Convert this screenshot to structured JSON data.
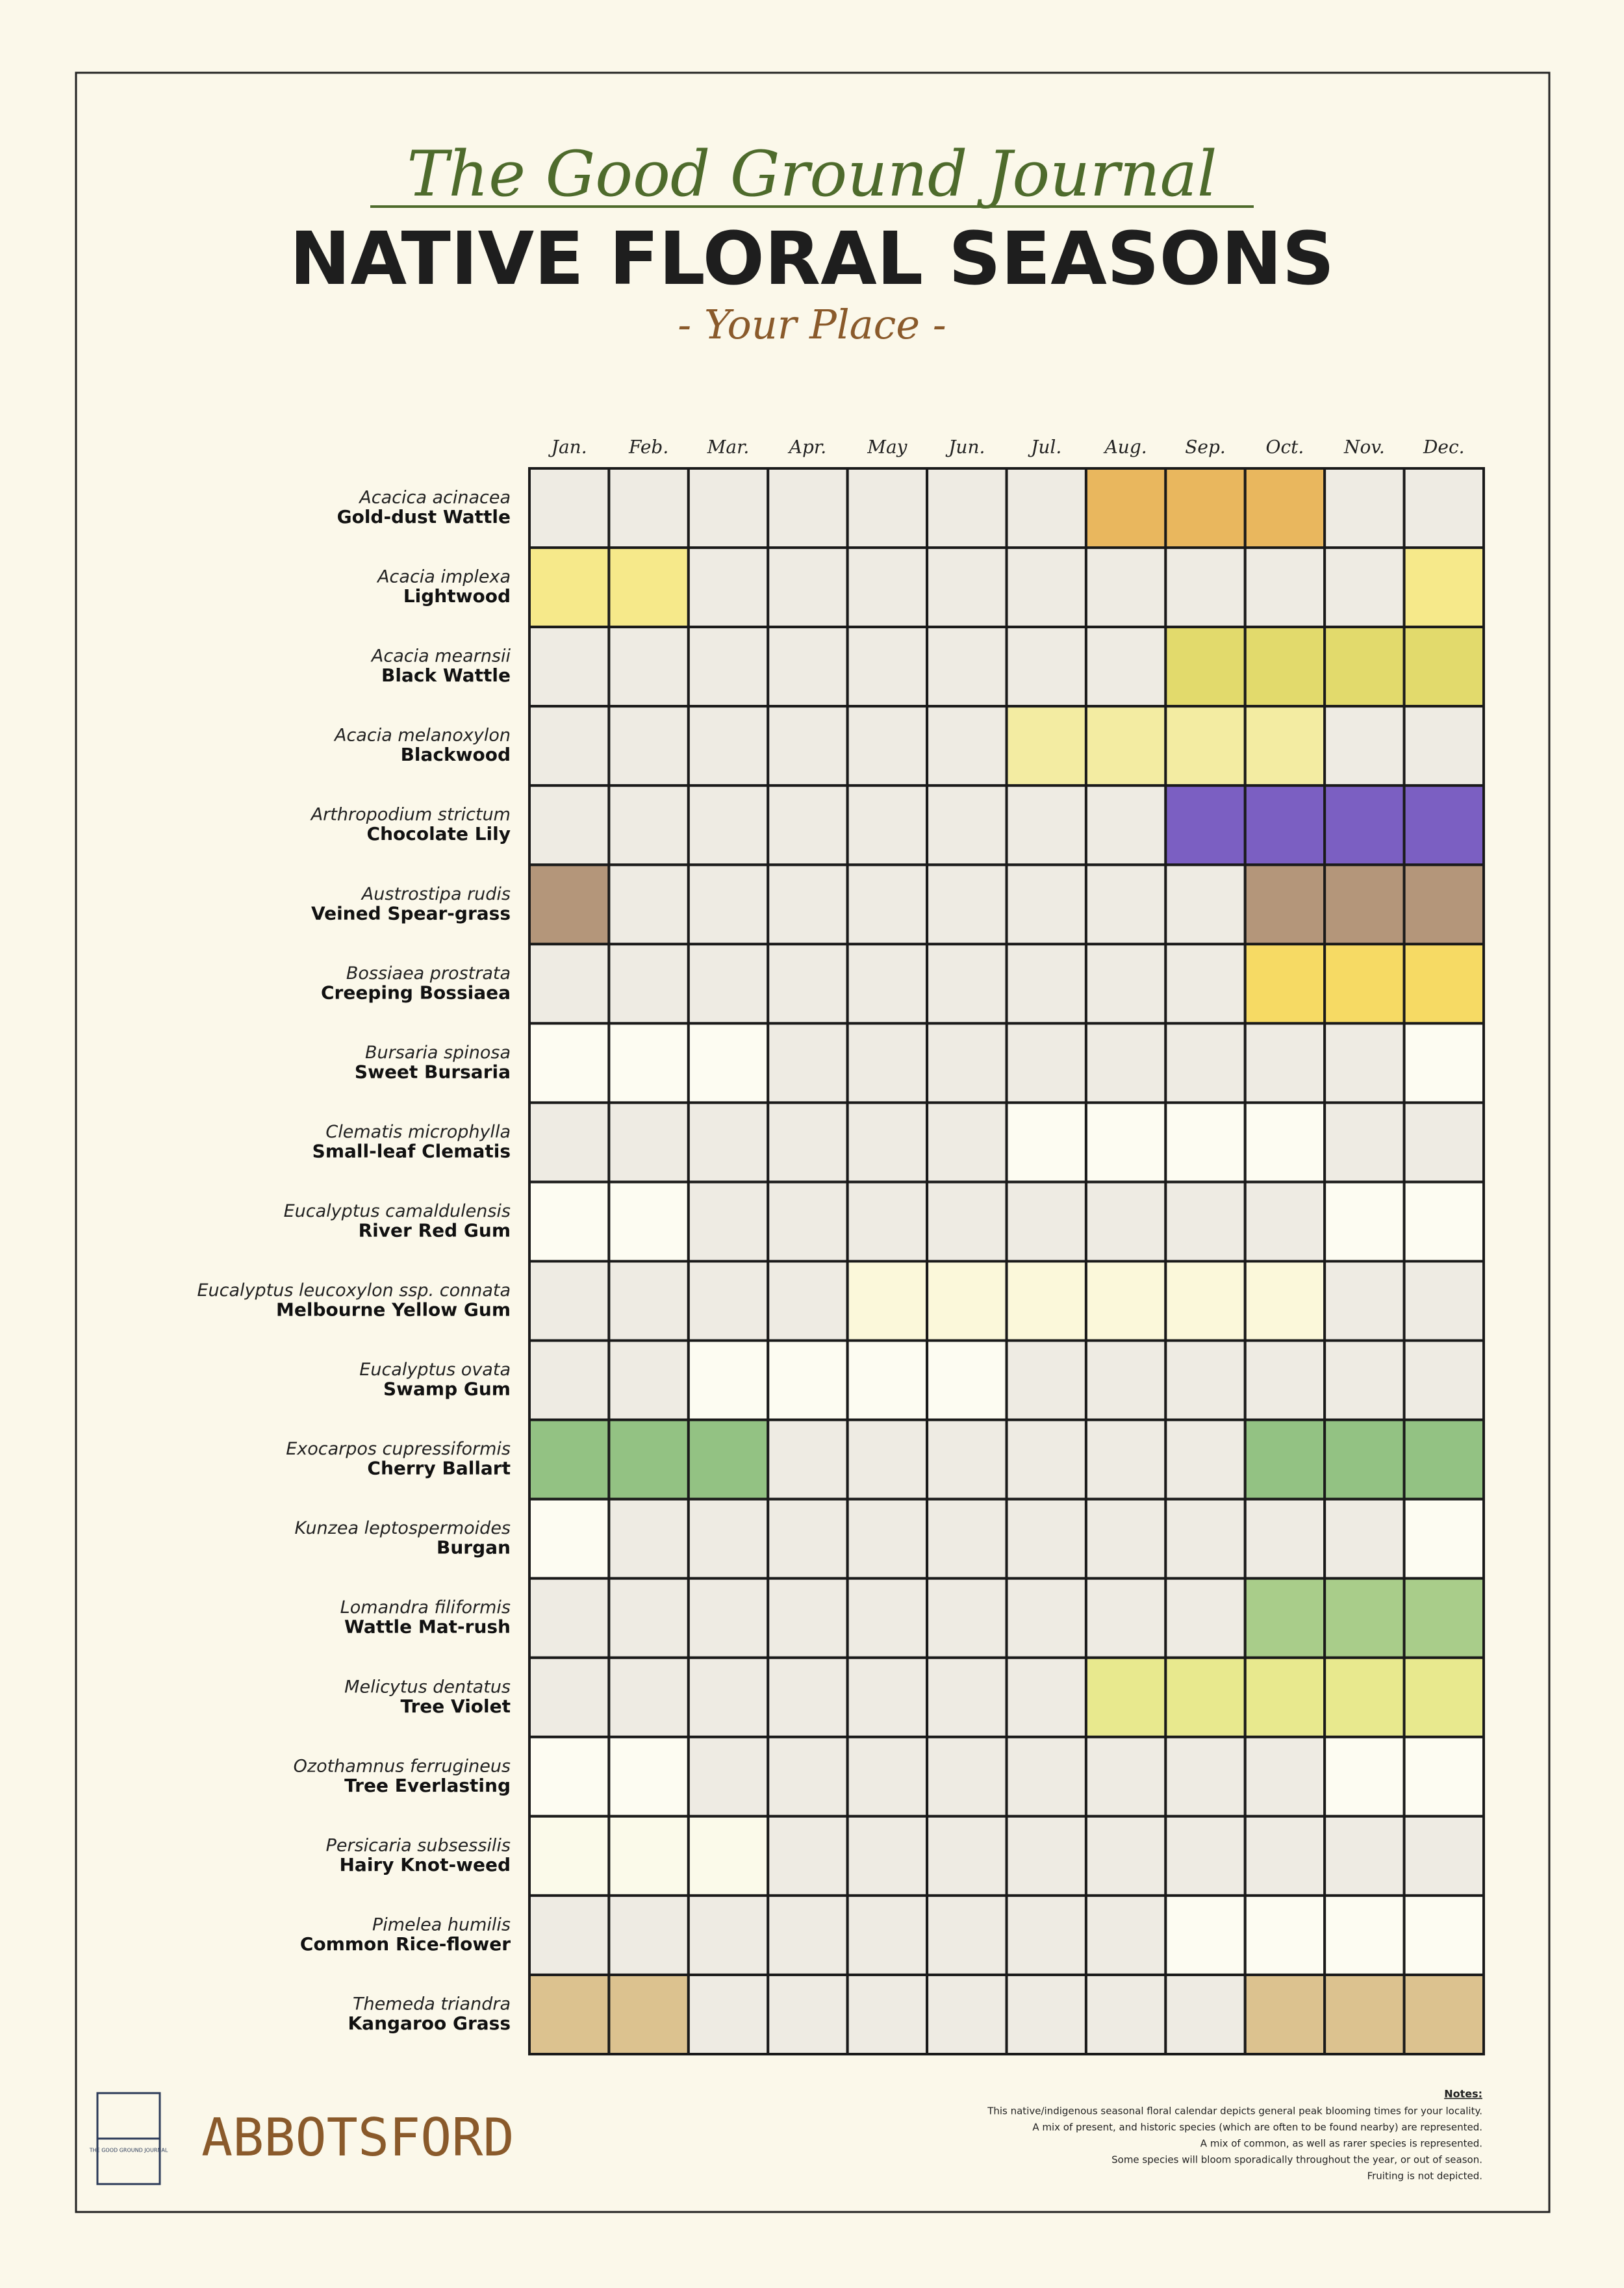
{
  "header": {
    "journal": "The Good Ground Journal",
    "title": "NATIVE FLORAL SEASONS",
    "place": "- Your Place -"
  },
  "calendar": {
    "months": [
      "Jan.",
      "Feb.",
      "Mar.",
      "Apr.",
      "May",
      "Jun.",
      "Jul.",
      "Aug.",
      "Sep.",
      "Oct.",
      "Nov.",
      "Dec."
    ],
    "species": [
      {
        "scientific": "Acacica acinacea",
        "common": "Gold-dust Wattle",
        "color": "#e9b75e",
        "bloom": [
          "Aug.",
          "Sep.",
          "Oct."
        ]
      },
      {
        "scientific": "Acacia implexa",
        "common": "Lightwood",
        "color": "#f6e98a",
        "bloom": [
          "Jan.",
          "Feb.",
          "Dec."
        ]
      },
      {
        "scientific": "Acacia mearnsii",
        "common": "Black Wattle",
        "color": "#e2da6c",
        "bloom": [
          "Sep.",
          "Oct.",
          "Nov.",
          "Dec."
        ]
      },
      {
        "scientific": "Acacia melanoxylon",
        "common": "Blackwood",
        "color": "#f3eca2",
        "bloom": [
          "Jul.",
          "Aug.",
          "Sep.",
          "Oct."
        ]
      },
      {
        "scientific": "Arthropodium strictum",
        "common": "Chocolate Lily",
        "color": "#7b5fc2",
        "bloom": [
          "Sep.",
          "Oct.",
          "Nov.",
          "Dec."
        ]
      },
      {
        "scientific": "Austrostipa rudis",
        "common": "Veined Spear-grass",
        "color": "#b4967a",
        "bloom": [
          "Jan.",
          "Oct.",
          "Nov.",
          "Dec."
        ]
      },
      {
        "scientific": "Bossiaea prostrata",
        "common": "Creeping Bossiaea",
        "color": "#f6da64",
        "bloom": [
          "Oct.",
          "Nov.",
          "Dec."
        ]
      },
      {
        "scientific": "Bursaria spinosa",
        "common": "Sweet Bursaria",
        "color": "#fdfcf2",
        "bloom": [
          "Jan.",
          "Feb.",
          "Mar.",
          "Dec."
        ]
      },
      {
        "scientific": "Clematis microphylla",
        "common": "Small-leaf Clematis",
        "color": "#fdfcf2",
        "bloom": [
          "Jul.",
          "Aug.",
          "Sep.",
          "Oct."
        ]
      },
      {
        "scientific": "Eucalyptus camaldulensis",
        "common": "River Red Gum",
        "color": "#fdfcf2",
        "bloom": [
          "Jan.",
          "Feb.",
          "Nov.",
          "Dec."
        ]
      },
      {
        "scientific": "Eucalyptus leucoxylon ssp. connata",
        "common": "Melbourne Yellow Gum",
        "color": "#fbf8da",
        "bloom": [
          "May",
          "Jun.",
          "Jul.",
          "Aug.",
          "Sep.",
          "Oct."
        ]
      },
      {
        "scientific": "Eucalyptus ovata",
        "common": "Swamp Gum",
        "color": "#fdfcf2",
        "bloom": [
          "Mar.",
          "Apr.",
          "May",
          "Jun."
        ]
      },
      {
        "scientific": "Exocarpos cupressiformis",
        "common": "Cherry Ballart",
        "color": "#93c283",
        "bloom": [
          "Jan.",
          "Feb.",
          "Mar.",
          "Oct.",
          "Nov.",
          "Dec."
        ]
      },
      {
        "scientific": "Kunzea leptospermoides",
        "common": "Burgan",
        "color": "#fdfcf2",
        "bloom": [
          "Jan.",
          "Dec."
        ]
      },
      {
        "scientific": "Lomandra filiformis",
        "common": "Wattle Mat-rush",
        "color": "#a9cd8a",
        "bloom": [
          "Oct.",
          "Nov.",
          "Dec."
        ]
      },
      {
        "scientific": "Melicytus dentatus",
        "common": "Tree Violet",
        "color": "#e8e98e",
        "bloom": [
          "Aug.",
          "Sep.",
          "Oct.",
          "Nov.",
          "Dec."
        ]
      },
      {
        "scientific": "Ozothamnus ferrugineus",
        "common": "Tree Everlasting",
        "color": "#fdfcf2",
        "bloom": [
          "Jan.",
          "Feb.",
          "Nov.",
          "Dec."
        ]
      },
      {
        "scientific": "Persicaria subsessilis",
        "common": "Hairy Knot-weed",
        "color": "#fbfaea",
        "bloom": [
          "Jan.",
          "Feb.",
          "Mar."
        ]
      },
      {
        "scientific": "Pimelea humilis",
        "common": "Common Rice-flower",
        "color": "#fdfcf2",
        "bloom": [
          "Sep.",
          "Oct.",
          "Nov.",
          "Dec."
        ]
      },
      {
        "scientific": "Themeda triandra",
        "common": "Kangaroo Grass",
        "color": "#dcc28f",
        "bloom": [
          "Jan.",
          "Feb.",
          "Oct.",
          "Nov.",
          "Dec."
        ]
      }
    ]
  },
  "footer": {
    "logo": "THE GOOD GROUND JOURNAL",
    "locality": "ABBOTSFORD",
    "notes_title": "Notes:",
    "notes": [
      "This native/indigenous seasonal floral calendar depicts general peak blooming times for your locality.",
      "A mix of present, and historic species (which are often to be found nearby) are represented.",
      "A mix of common, as well as rarer species is represented.",
      "Some species will bloom sporadically throughout the year, or out of season.",
      "Fruiting is not depicted."
    ]
  }
}
